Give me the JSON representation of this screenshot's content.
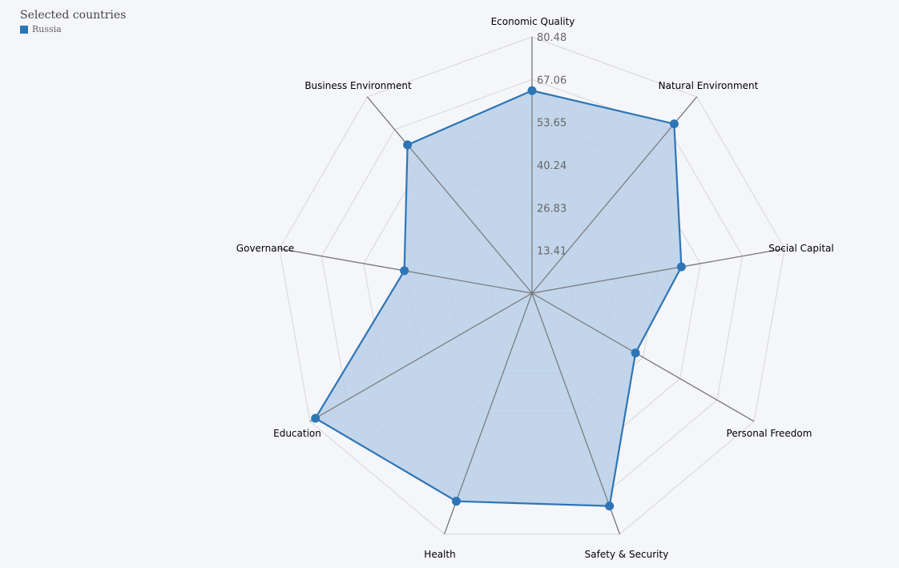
{
  "legend": {
    "title": "Selected countries",
    "items": [
      {
        "label": "Russia",
        "color": "#2e75b6"
      }
    ]
  },
  "chart_data": {
    "type": "radar",
    "title": "",
    "axes": [
      "Economic Quality",
      "Natural Environment",
      "Social Capital",
      "Personal Freedom",
      "Safety & Security",
      "Health",
      "Education",
      "Governance",
      "Business Environment"
    ],
    "tick_values": [
      "13.41",
      "26.83",
      "40.24",
      "53.65",
      "67.06",
      "80.48"
    ],
    "range": [
      0,
      80.48
    ],
    "grid": true,
    "legend_position": "top-left",
    "series": [
      {
        "name": "Russia",
        "color": "#2e75b6",
        "fill": "#b9cfe6",
        "values": [
          63.6,
          69.4,
          47.6,
          37.5,
          71.1,
          69.5,
          78.5,
          40.7,
          60.8
        ]
      }
    ]
  }
}
